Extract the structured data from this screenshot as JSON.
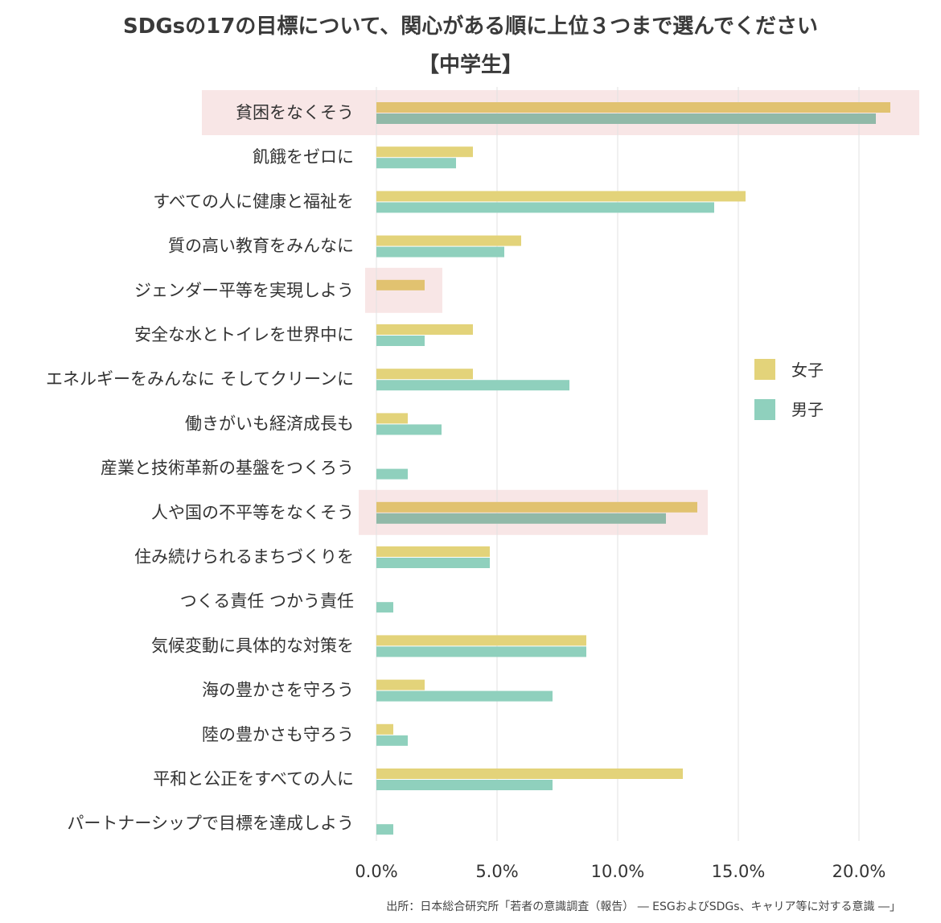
{
  "title": "SDGsの17の目標について、関心がある順に上位３つまで選んでください",
  "subtitle": "【中学生】",
  "source": "出所：日本総合研究所「若者の意識調査（報告） ― ESGおよびSDGs、キャリア等に対する意識 ―」",
  "legend": {
    "position": "right",
    "female_label": "女子",
    "male_label": "男子"
  },
  "colors": {
    "female": "#e3d37a",
    "male": "#8fd0bd",
    "highlight_bg": "#f8e6e6"
  },
  "chart_data": {
    "type": "bar",
    "orientation": "horizontal",
    "title": "SDGsの17の目標について、関心がある順に上位３つまで選んでください",
    "subtitle": "【中学生】",
    "categories": [
      "貧困をなくそう",
      "飢餓をゼロに",
      "すべての人に健康と福祉を",
      "質の高い教育をみんなに",
      "ジェンダー平等を実現しよう",
      "安全な水とトイレを世界中に",
      "エネルギーをみんなに そしてクリーンに",
      "働きがいも経済成長も",
      "産業と技術革新の基盤をつくろう",
      "人や国の不平等をなくそう",
      "住み続けられるまちづくりを",
      "つくる責任 つかう責任",
      "気候変動に具体的な対策を",
      "海の豊かさを守ろう",
      "陸の豊かさも守ろう",
      "平和と公正をすべての人に",
      "パートナーシップで目標を達成しよう"
    ],
    "series": [
      {
        "name": "女子",
        "values": [
          21.3,
          4.0,
          15.3,
          6.0,
          2.0,
          4.0,
          4.0,
          1.3,
          0.0,
          13.3,
          4.7,
          0.0,
          8.7,
          2.0,
          0.7,
          12.7,
          0.0
        ]
      },
      {
        "name": "男子",
        "values": [
          20.7,
          3.3,
          14.0,
          5.3,
          0.0,
          2.0,
          8.0,
          2.7,
          1.3,
          12.0,
          4.7,
          0.7,
          8.7,
          7.3,
          1.3,
          7.3,
          0.7
        ]
      }
    ],
    "highlighted_categories": [
      "貧困をなくそう",
      "ジェンダー平等を実現しよう",
      "人や国の不平等をなくそう"
    ],
    "xlim": [
      0,
      22.5
    ],
    "xticks": [
      "0.0%",
      "5.0%",
      "10.0%",
      "15.0%",
      "20.0%"
    ],
    "xtick_values": [
      0,
      5,
      10,
      15,
      20
    ],
    "grid": "vertical"
  }
}
